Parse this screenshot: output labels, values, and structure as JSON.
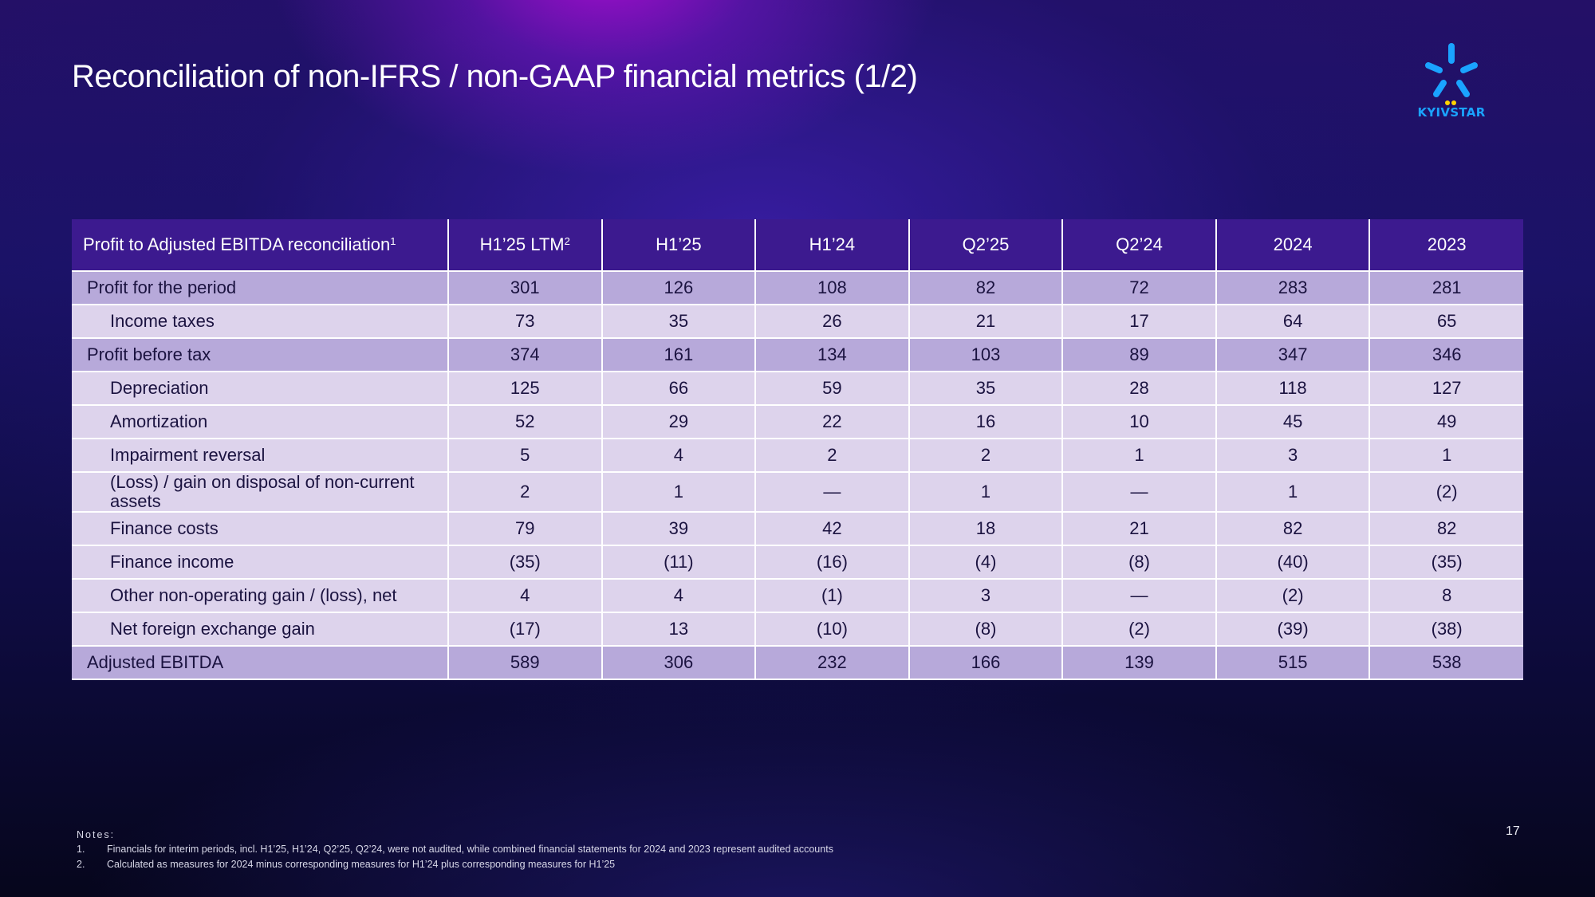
{
  "title": "Reconciliation of non-IFRS / non-GAAP financial metrics (1/2)",
  "logo": {
    "text": "KYIVSTAR",
    "colors": {
      "rays": "#1aa3ff",
      "dots": "#ffd400"
    }
  },
  "table": {
    "header": {
      "label": "Profit to Adjusted EBITDA reconciliation",
      "label_sup": "1",
      "columns": [
        {
          "label": "H1’25 LTM",
          "sup": "2"
        },
        {
          "label": "H1’25",
          "sup": ""
        },
        {
          "label": "H1’24",
          "sup": ""
        },
        {
          "label": "Q2’25",
          "sup": ""
        },
        {
          "label": "Q2’24",
          "sup": ""
        },
        {
          "label": "2024",
          "sup": ""
        },
        {
          "label": "2023",
          "sup": ""
        }
      ]
    },
    "rows": [
      {
        "label": "Profit for the period",
        "values": [
          "301",
          "126",
          "108",
          "82",
          "72",
          "283",
          "281"
        ]
      },
      {
        "label": "Income taxes",
        "values": [
          "73",
          "35",
          "26",
          "21",
          "17",
          "64",
          "65"
        ]
      },
      {
        "label": "Profit before tax",
        "values": [
          "374",
          "161",
          "134",
          "103",
          "89",
          "347",
          "346"
        ]
      },
      {
        "label": "Depreciation",
        "values": [
          "125",
          "66",
          "59",
          "35",
          "28",
          "118",
          "127"
        ]
      },
      {
        "label": "Amortization",
        "values": [
          "52",
          "29",
          "22",
          "16",
          "10",
          "45",
          "49"
        ]
      },
      {
        "label": "Impairment reversal",
        "values": [
          "5",
          "4",
          "2",
          "2",
          "1",
          "3",
          "1"
        ]
      },
      {
        "label": "(Loss) / gain on disposal of non-current assets",
        "values": [
          "2",
          "1",
          "—",
          "1",
          "—",
          "1",
          "(2)"
        ]
      },
      {
        "label": "Finance costs",
        "values": [
          "79",
          "39",
          "42",
          "18",
          "21",
          "82",
          "82"
        ]
      },
      {
        "label": "Finance income",
        "values": [
          "(35)",
          "(11)",
          "(16)",
          "(4)",
          "(8)",
          "(40)",
          "(35)"
        ]
      },
      {
        "label": "Other non-operating gain / (loss), net",
        "values": [
          "4",
          "4",
          "(1)",
          "3",
          "—",
          "(2)",
          "8"
        ]
      },
      {
        "label": "Net foreign exchange gain",
        "values": [
          "(17)",
          "13",
          "(10)",
          "(8)",
          "(2)",
          "(39)",
          "(38)"
        ]
      },
      {
        "label": "Adjusted EBITDA",
        "values": [
          "589",
          "306",
          "232",
          "166",
          "139",
          "515",
          "538"
        ]
      }
    ]
  },
  "notes": {
    "heading": "Notes:",
    "items": [
      {
        "num": "1.",
        "text": "Financials for interim periods, incl. H1’25, H1’24, Q2’25, Q2’24, were not audited, while combined financial statements for 2024 and 2023 represent audited accounts"
      },
      {
        "num": "2.",
        "text": "Calculated as measures for 2024 minus corresponding measures for H1’24 plus corresponding measures for H1’25"
      }
    ]
  },
  "page_number": "17"
}
